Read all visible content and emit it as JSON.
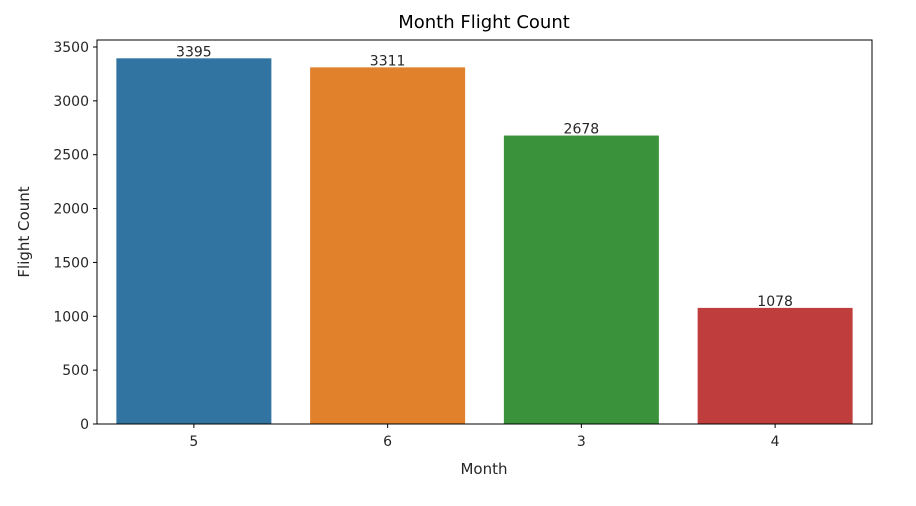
{
  "chart_data": {
    "type": "bar",
    "title": "Month Flight Count",
    "xlabel": "Month",
    "ylabel": "Flight Count",
    "categories": [
      "5",
      "6",
      "3",
      "4"
    ],
    "values": [
      3395,
      3311,
      2678,
      1078
    ],
    "colors": [
      "#3274a1",
      "#e1812c",
      "#3a923a",
      "#c03d3e"
    ],
    "ylim": [
      0,
      3565
    ],
    "yticks": [
      0,
      500,
      1000,
      1500,
      2000,
      2500,
      3000,
      3500
    ],
    "grid": false,
    "legend": "none"
  }
}
